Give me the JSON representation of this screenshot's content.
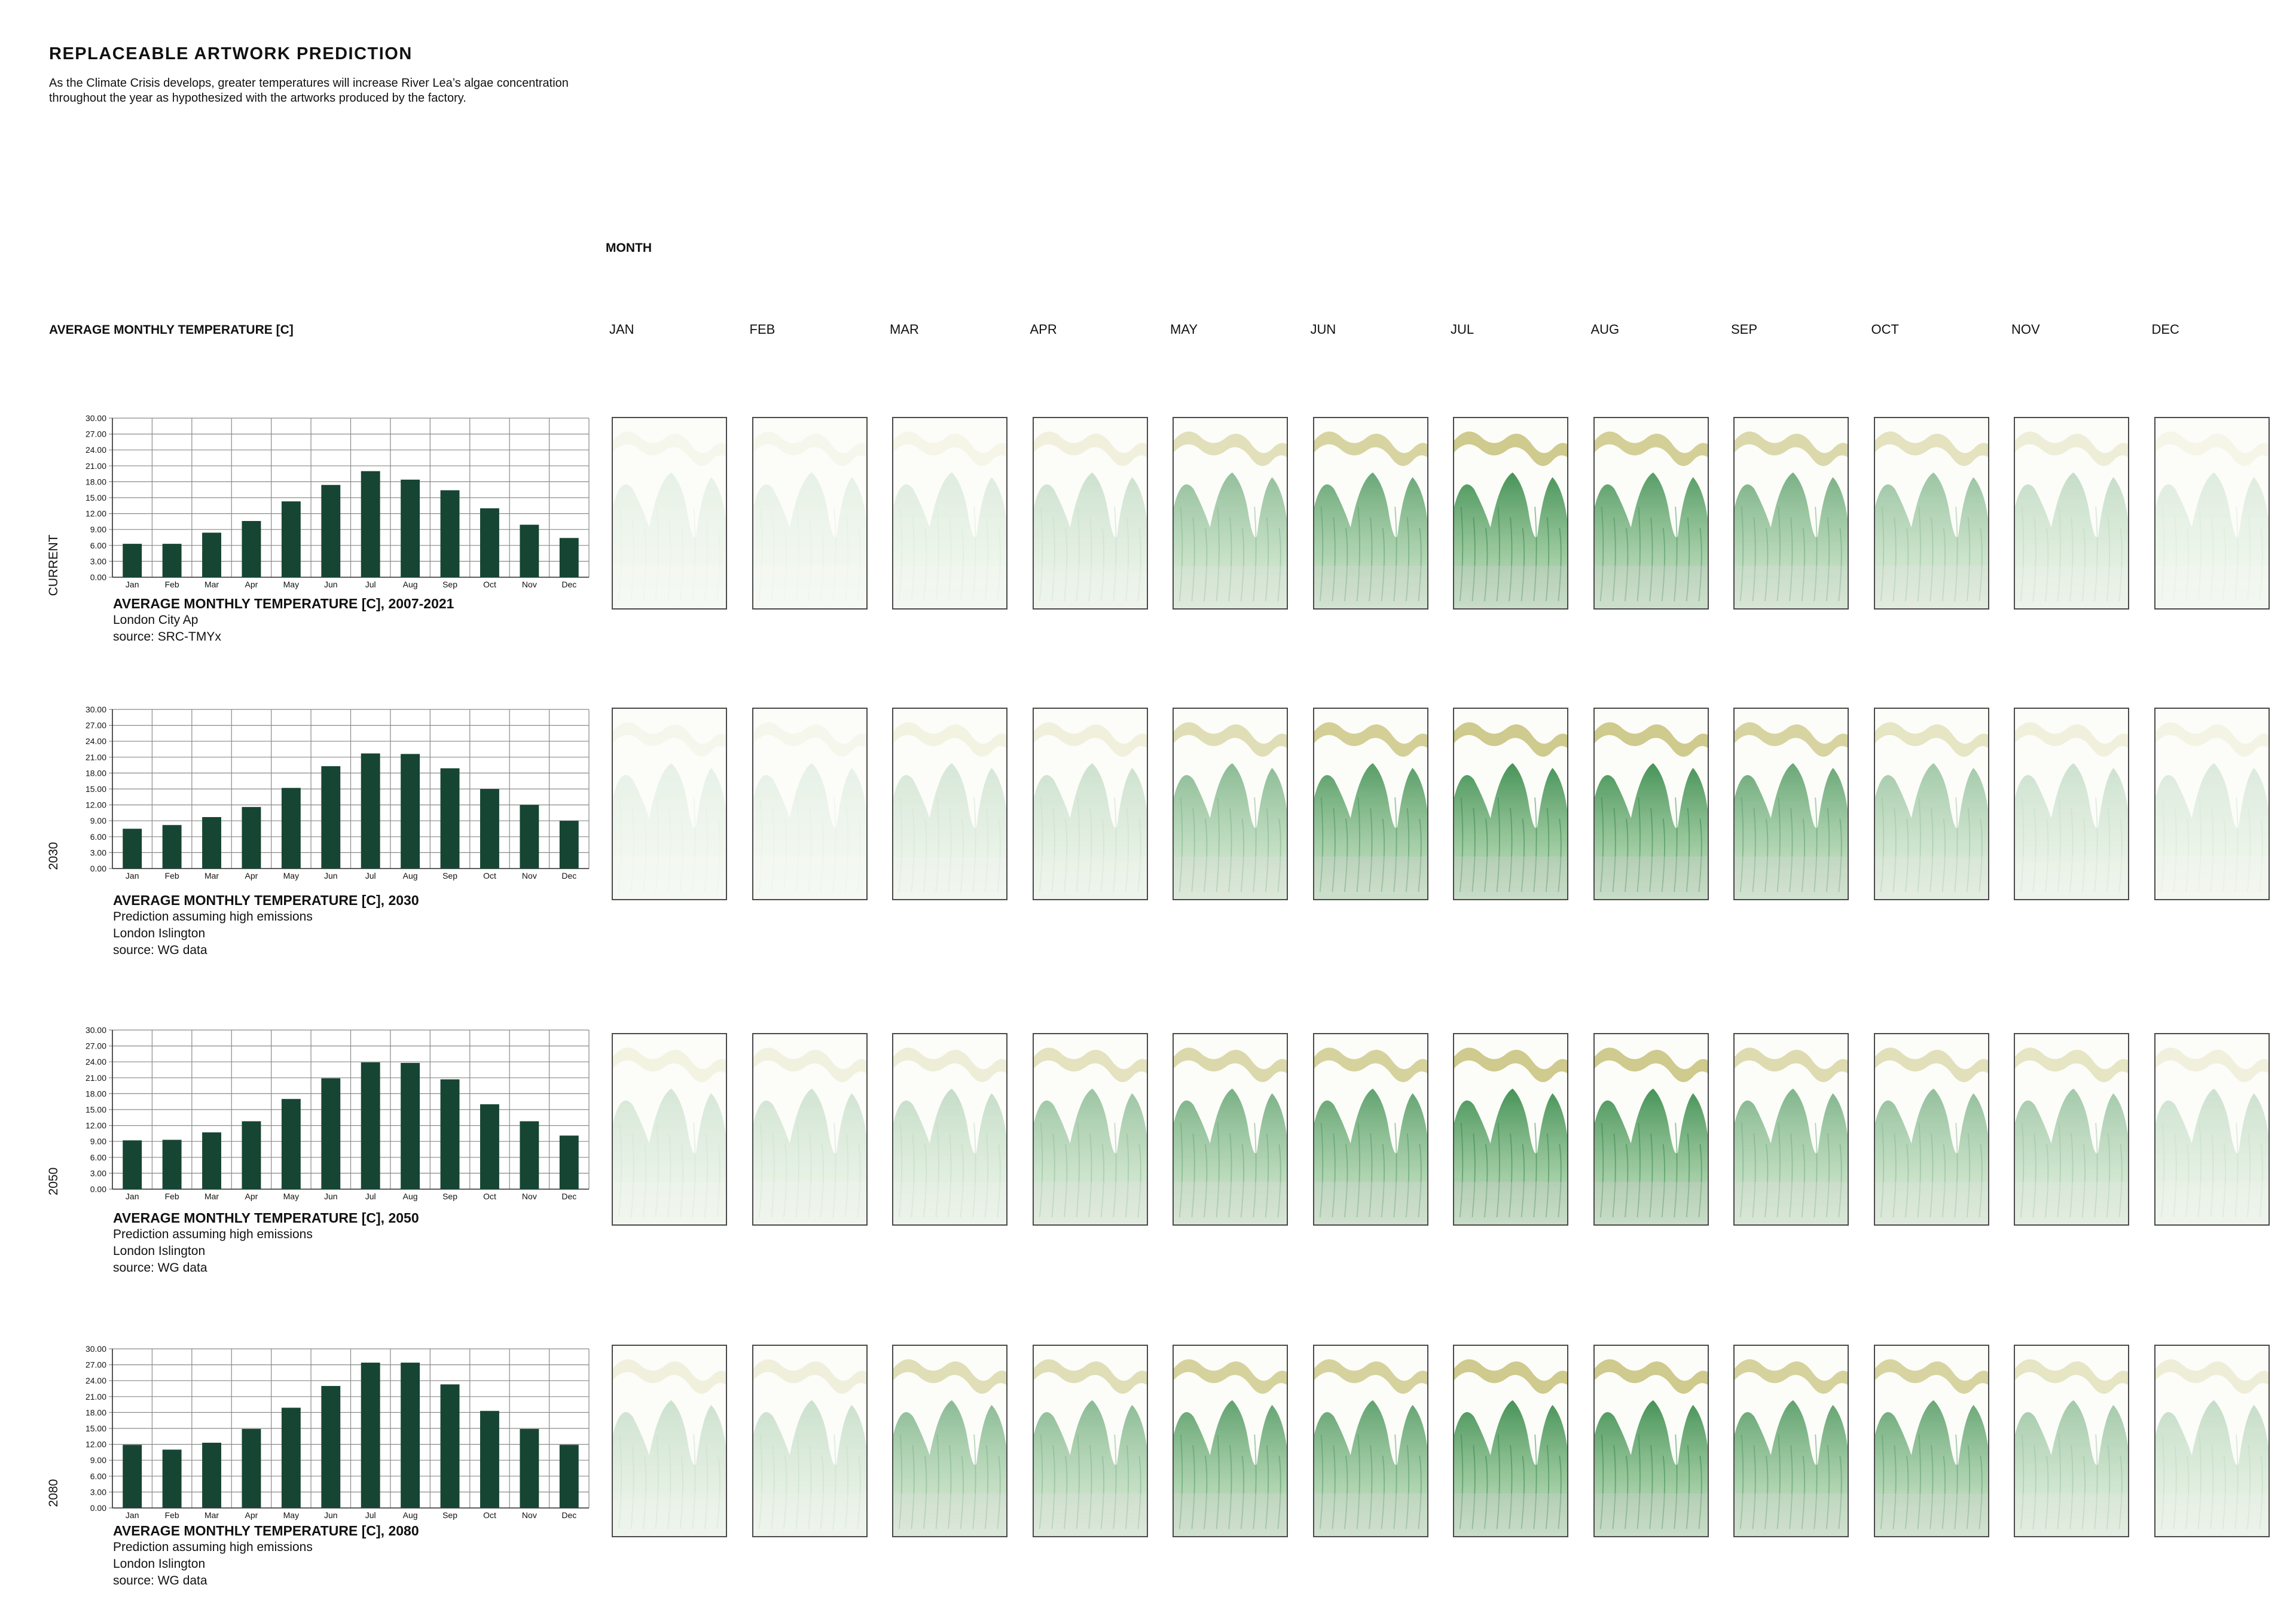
{
  "header": {
    "title": "REPLACEABLE ARTWORK PREDICTION",
    "intro_line1": "As the Climate Crisis develops, greater temperatures will increase River Lea’s algae concentration",
    "intro_line2": "throughout the year as hypothesized with the artworks produced by the factory."
  },
  "grid": {
    "month_heading": "MONTH",
    "temperature_heading": "AVERAGE MONTHLY TEMPERATURE [C]",
    "months": [
      "JAN",
      "FEB",
      "MAR",
      "APR",
      "MAY",
      "JUN",
      "JUL",
      "AUG",
      "SEP",
      "OCT",
      "NOV",
      "DEC"
    ]
  },
  "colors": {
    "bar": "#164533",
    "grid": "#8a8a8a",
    "algae_dark": "#1d7a33",
    "algae_light": "#8fc98c",
    "ribbon": "#b9b35a",
    "panel_border": "#4a4a4a"
  },
  "rows": [
    {
      "label": "CURRENT",
      "caption_title": "AVERAGE MONTHLY TEMPERATURE [C], 2007-2021",
      "caption_lines": [
        "London City Ap",
        "source: SRC-TMYx"
      ],
      "artwork_icon": "algae-artwork",
      "artwork_intensity": [
        0.05,
        0.05,
        0.1,
        0.2,
        0.55,
        0.8,
        1.0,
        0.9,
        0.7,
        0.5,
        0.25,
        0.1
      ]
    },
    {
      "label": "2030",
      "caption_title": "AVERAGE MONTHLY TEMPERATURE [C], 2030",
      "caption_lines": [
        "Prediction assuming high emissions",
        "London Islington",
        "source: WG data"
      ],
      "artwork_icon": "algae-artwork",
      "artwork_intensity": [
        0.05,
        0.05,
        0.15,
        0.2,
        0.6,
        0.9,
        1.0,
        1.0,
        0.8,
        0.45,
        0.2,
        0.12
      ]
    },
    {
      "label": "2050",
      "caption_title": "AVERAGE MONTHLY TEMPERATURE [C], 2050",
      "caption_lines": [
        "Prediction assuming high emissions",
        "London Islington",
        "source: WG data"
      ],
      "artwork_icon": "algae-artwork",
      "artwork_intensity": [
        0.15,
        0.18,
        0.25,
        0.5,
        0.7,
        0.85,
        1.0,
        1.0,
        0.65,
        0.55,
        0.45,
        0.2
      ]
    },
    {
      "label": "2080",
      "caption_title": "AVERAGE MONTHLY TEMPERATURE [C], 2080",
      "caption_lines": [
        "Prediction assuming high emissions",
        "London Islington",
        "source: WG data"
      ],
      "artwork_icon": "algae-artwork",
      "artwork_intensity": [
        0.2,
        0.22,
        0.6,
        0.6,
        0.85,
        0.85,
        1.0,
        1.0,
        0.85,
        0.8,
        0.45,
        0.25
      ]
    }
  ],
  "chart_data": [
    {
      "type": "bar",
      "categories": [
        "Jan",
        "Feb",
        "Mar",
        "Apr",
        "May",
        "Jun",
        "Jul",
        "Aug",
        "Sep",
        "Oct",
        "Nov",
        "Dec"
      ],
      "values": [
        6.3,
        6.3,
        8.4,
        10.6,
        14.3,
        17.4,
        20.0,
        18.4,
        16.4,
        13.0,
        9.9,
        7.4
      ],
      "ylim": [
        0,
        30
      ],
      "yticks": [
        "0.00",
        "3.00",
        "6.00",
        "9.00",
        "12.00",
        "15.00",
        "18.00",
        "21.00",
        "24.00",
        "27.00",
        "30.00"
      ],
      "grid": true,
      "title": "AVERAGE MONTHLY TEMPERATURE [C], 2007-2021"
    },
    {
      "type": "bar",
      "categories": [
        "Jan",
        "Feb",
        "Mar",
        "Apr",
        "May",
        "Jun",
        "Jul",
        "Aug",
        "Sep",
        "Oct",
        "Nov",
        "Dec"
      ],
      "values": [
        7.5,
        8.2,
        9.7,
        11.6,
        15.2,
        19.3,
        21.7,
        21.6,
        18.9,
        15.0,
        12.0,
        9.0
      ],
      "ylim": [
        0,
        30
      ],
      "yticks": [
        "0.00",
        "3.00",
        "6.00",
        "9.00",
        "12.00",
        "15.00",
        "18.00",
        "21.00",
        "24.00",
        "27.00",
        "30.00"
      ],
      "grid": true,
      "title": "AVERAGE MONTHLY TEMPERATURE [C], 2030"
    },
    {
      "type": "bar",
      "categories": [
        "Jan",
        "Feb",
        "Mar",
        "Apr",
        "May",
        "Jun",
        "Jul",
        "Aug",
        "Sep",
        "Oct",
        "Nov",
        "Dec"
      ],
      "values": [
        9.2,
        9.3,
        10.7,
        12.8,
        17.0,
        20.9,
        23.9,
        23.8,
        20.7,
        16.0,
        12.8,
        10.1
      ],
      "ylim": [
        0,
        30
      ],
      "yticks": [
        "0.00",
        "3.00",
        "6.00",
        "9.00",
        "12.00",
        "15.00",
        "18.00",
        "21.00",
        "24.00",
        "27.00",
        "30.00"
      ],
      "grid": true,
      "title": "AVERAGE MONTHLY TEMPERATURE [C], 2050"
    },
    {
      "type": "bar",
      "categories": [
        "Jan",
        "Feb",
        "Mar",
        "Apr",
        "May",
        "Jun",
        "Jul",
        "Aug",
        "Sep",
        "Oct",
        "Nov",
        "Dec"
      ],
      "values": [
        11.9,
        11.0,
        12.3,
        14.9,
        18.9,
        23.0,
        27.4,
        27.4,
        23.3,
        18.3,
        14.9,
        11.9
      ],
      "ylim": [
        0,
        30
      ],
      "yticks": [
        "0.00",
        "3.00",
        "6.00",
        "9.00",
        "12.00",
        "15.00",
        "18.00",
        "21.00",
        "24.00",
        "27.00",
        "30.00"
      ],
      "grid": true,
      "title": "AVERAGE MONTHLY TEMPERATURE [C], 2080"
    }
  ]
}
